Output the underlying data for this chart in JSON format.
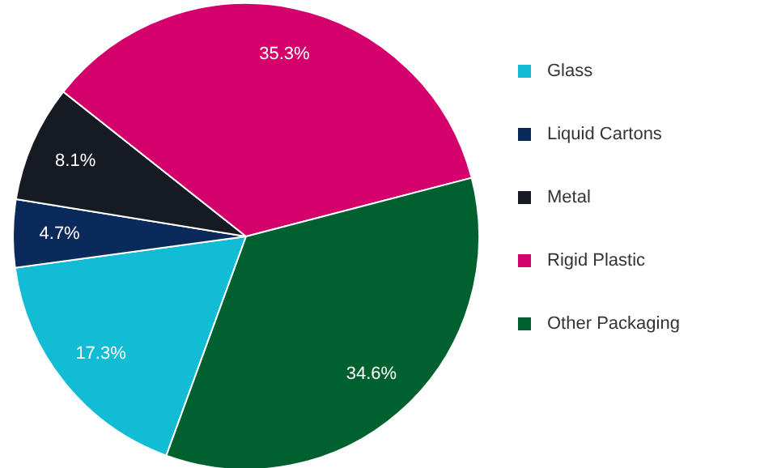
{
  "chart_data": {
    "type": "pie",
    "categories": [
      "Glass",
      "Liquid Cartons",
      "Metal",
      "Rigid Plastic",
      "Other Packaging"
    ],
    "values": [
      17.3,
      4.7,
      8.1,
      35.3,
      34.6
    ],
    "value_labels": [
      "17.3%",
      "4.7%",
      "8.1%",
      "35.3%",
      "34.6%"
    ],
    "colors": [
      "#12bcd4",
      "#0b2a5c",
      "#161a22",
      "#d4006c",
      "#00602f"
    ],
    "legend": "right"
  }
}
